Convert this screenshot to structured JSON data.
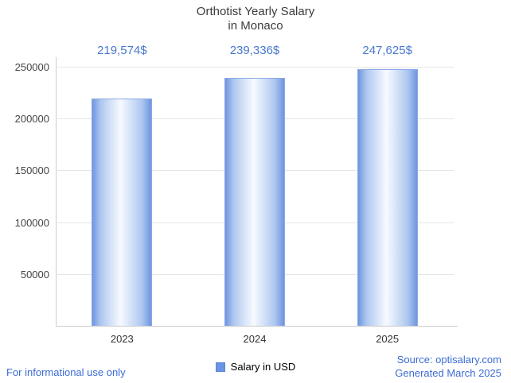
{
  "title": {
    "line1": "Orthotist Yearly Salary",
    "line2": "in Monaco"
  },
  "chart_data": {
    "type": "bar",
    "title": "Orthotist Yearly Salary in Monaco",
    "categories": [
      "2023",
      "2024",
      "2025"
    ],
    "values": [
      219574,
      239336,
      247625
    ],
    "value_labels": [
      "219,574$",
      "239,336$",
      "247,625$"
    ],
    "xlabel": "",
    "ylabel": "",
    "ylim": [
      0,
      250000
    ],
    "ytick_step": 50000,
    "ytick_labels": [
      "50000",
      "100000",
      "150000",
      "200000",
      "250000"
    ],
    "grid": true,
    "legend": {
      "label": "Salary in USD",
      "position": "bottom"
    }
  },
  "footer": {
    "left": "For informational use only",
    "source": "Source: optisalary.com",
    "generated": "Generated March 2025"
  },
  "colors": {
    "bar_edge": "#6f96de",
    "bar_center": "#f7faff",
    "bar_border": "#8aa9e6",
    "value_label": "#4878cf",
    "footer_link": "#3b6cd4",
    "grid": "#e6e6e6",
    "axis": "#cccccc",
    "title": "#3c3c3c"
  }
}
